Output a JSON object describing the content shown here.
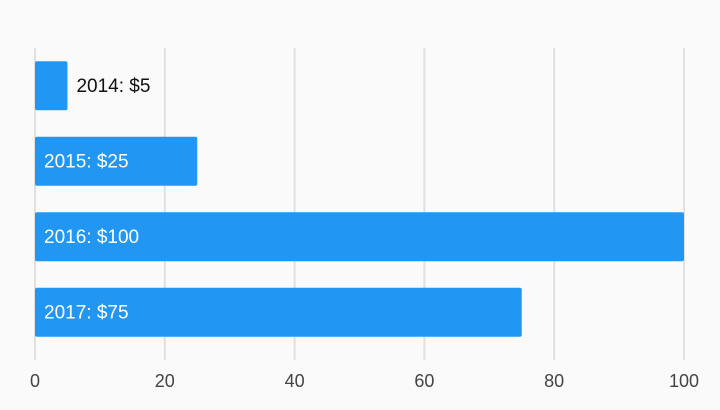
{
  "chart_data": {
    "type": "bar",
    "orientation": "horizontal",
    "categories": [
      "2014",
      "2015",
      "2016",
      "2017"
    ],
    "values": [
      5,
      25,
      100,
      75
    ],
    "value_labels": [
      "2014: $5",
      "2015: $25",
      "2016: $100",
      "2017: $75"
    ],
    "color": "#2196f3",
    "xlim": [
      0,
      100
    ],
    "xticks": [
      0,
      20,
      40,
      60,
      80,
      100
    ],
    "grid": true
  }
}
